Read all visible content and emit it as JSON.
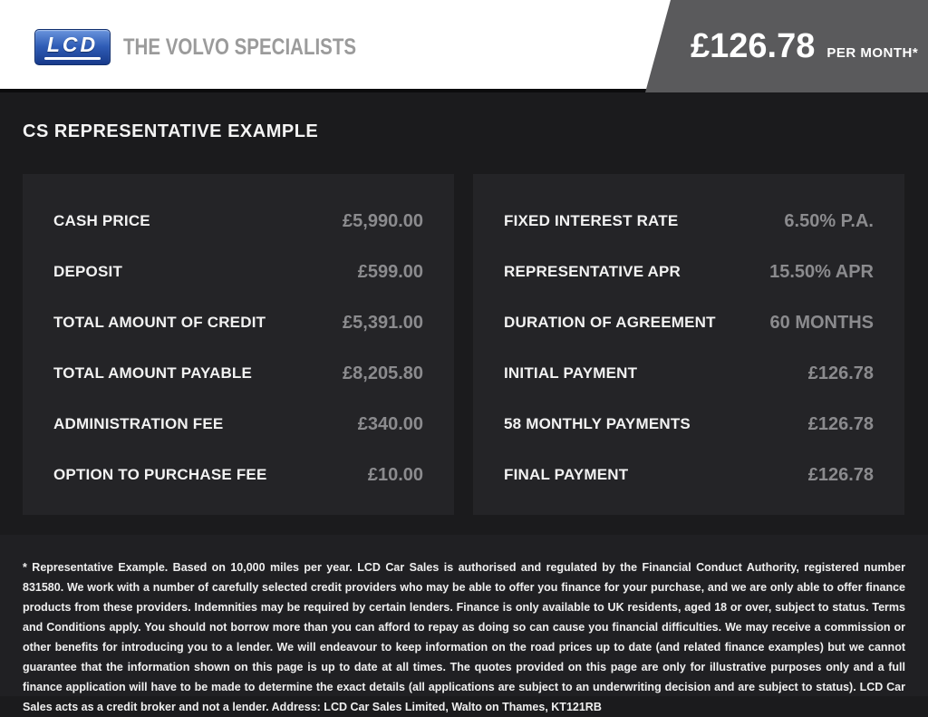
{
  "header": {
    "logo": {
      "text": "LCD",
      "tagline": "THE VOLVO SPECIALISTS"
    },
    "price": {
      "amount": "£126.78",
      "period": "PER MONTH*"
    }
  },
  "page_title": "CS REPRESENTATIVE EXAMPLE",
  "finance": {
    "left_column": [
      {
        "label": "CASH PRICE",
        "value": "£5,990.00"
      },
      {
        "label": "DEPOSIT",
        "value": "£599.00"
      },
      {
        "label": "TOTAL AMOUNT OF CREDIT",
        "value": "£5,391.00"
      },
      {
        "label": "TOTAL AMOUNT PAYABLE",
        "value": "£8,205.80"
      },
      {
        "label": "ADMINISTRATION FEE",
        "value": "£340.00"
      },
      {
        "label": "OPTION TO PURCHASE FEE",
        "value": "£10.00"
      }
    ],
    "right_column": [
      {
        "label": "FIXED INTEREST RATE",
        "value": "6.50% P.A."
      },
      {
        "label": "REPRESENTATIVE APR",
        "value": "15.50% APR"
      },
      {
        "label": "DURATION OF AGREEMENT",
        "value": "60 MONTHS"
      },
      {
        "label": "INITIAL PAYMENT",
        "value": "£126.78"
      },
      {
        "label": "58 MONTHLY PAYMENTS",
        "value": "£126.78"
      },
      {
        "label": "FINAL PAYMENT",
        "value": "£126.78"
      }
    ]
  },
  "disclaimer": "* Representative Example. Based on 10,000 miles per year. LCD Car Sales is authorised and regulated by the Financial Conduct Authority, registered number 831580. We work with a number of carefully selected credit providers who may be able to offer you finance for your purchase, and we are only able to offer finance products from these providers. Indemnities may be required by certain lenders. Finance is only available to UK residents, aged 18 or over, subject to status. Terms and Conditions apply. You should not borrow more than you can afford to repay as doing so can cause you financial difficulties. We may receive a commission or other benefits for introducing you to a lender. We will endeavour to keep information on the road prices up to date (and related finance examples) but we cannot guarantee that the information shown on this page is up to date at all times. The quotes provided on this page are only for illustrative purposes only and a full finance application will have to be made to determine the exact details (all applications are subject to an underwriting decision and are subject to status). LCD Car Sales acts as a credit broker and not a lender. Address: LCD Car Sales Limited, Walto on Thames, KT121RB",
  "colors": {
    "page_background": "#1b1b1d",
    "panel_background": "#242427",
    "footer_background": "#202023",
    "price_band": "#5a5a5c",
    "label_text": "#f2f2f2",
    "value_text": "#8b8b8e",
    "logo_blue_top": "#6a95dd",
    "logo_blue_bottom": "#173a8a",
    "tagline_gray": "#9b9b9b"
  }
}
